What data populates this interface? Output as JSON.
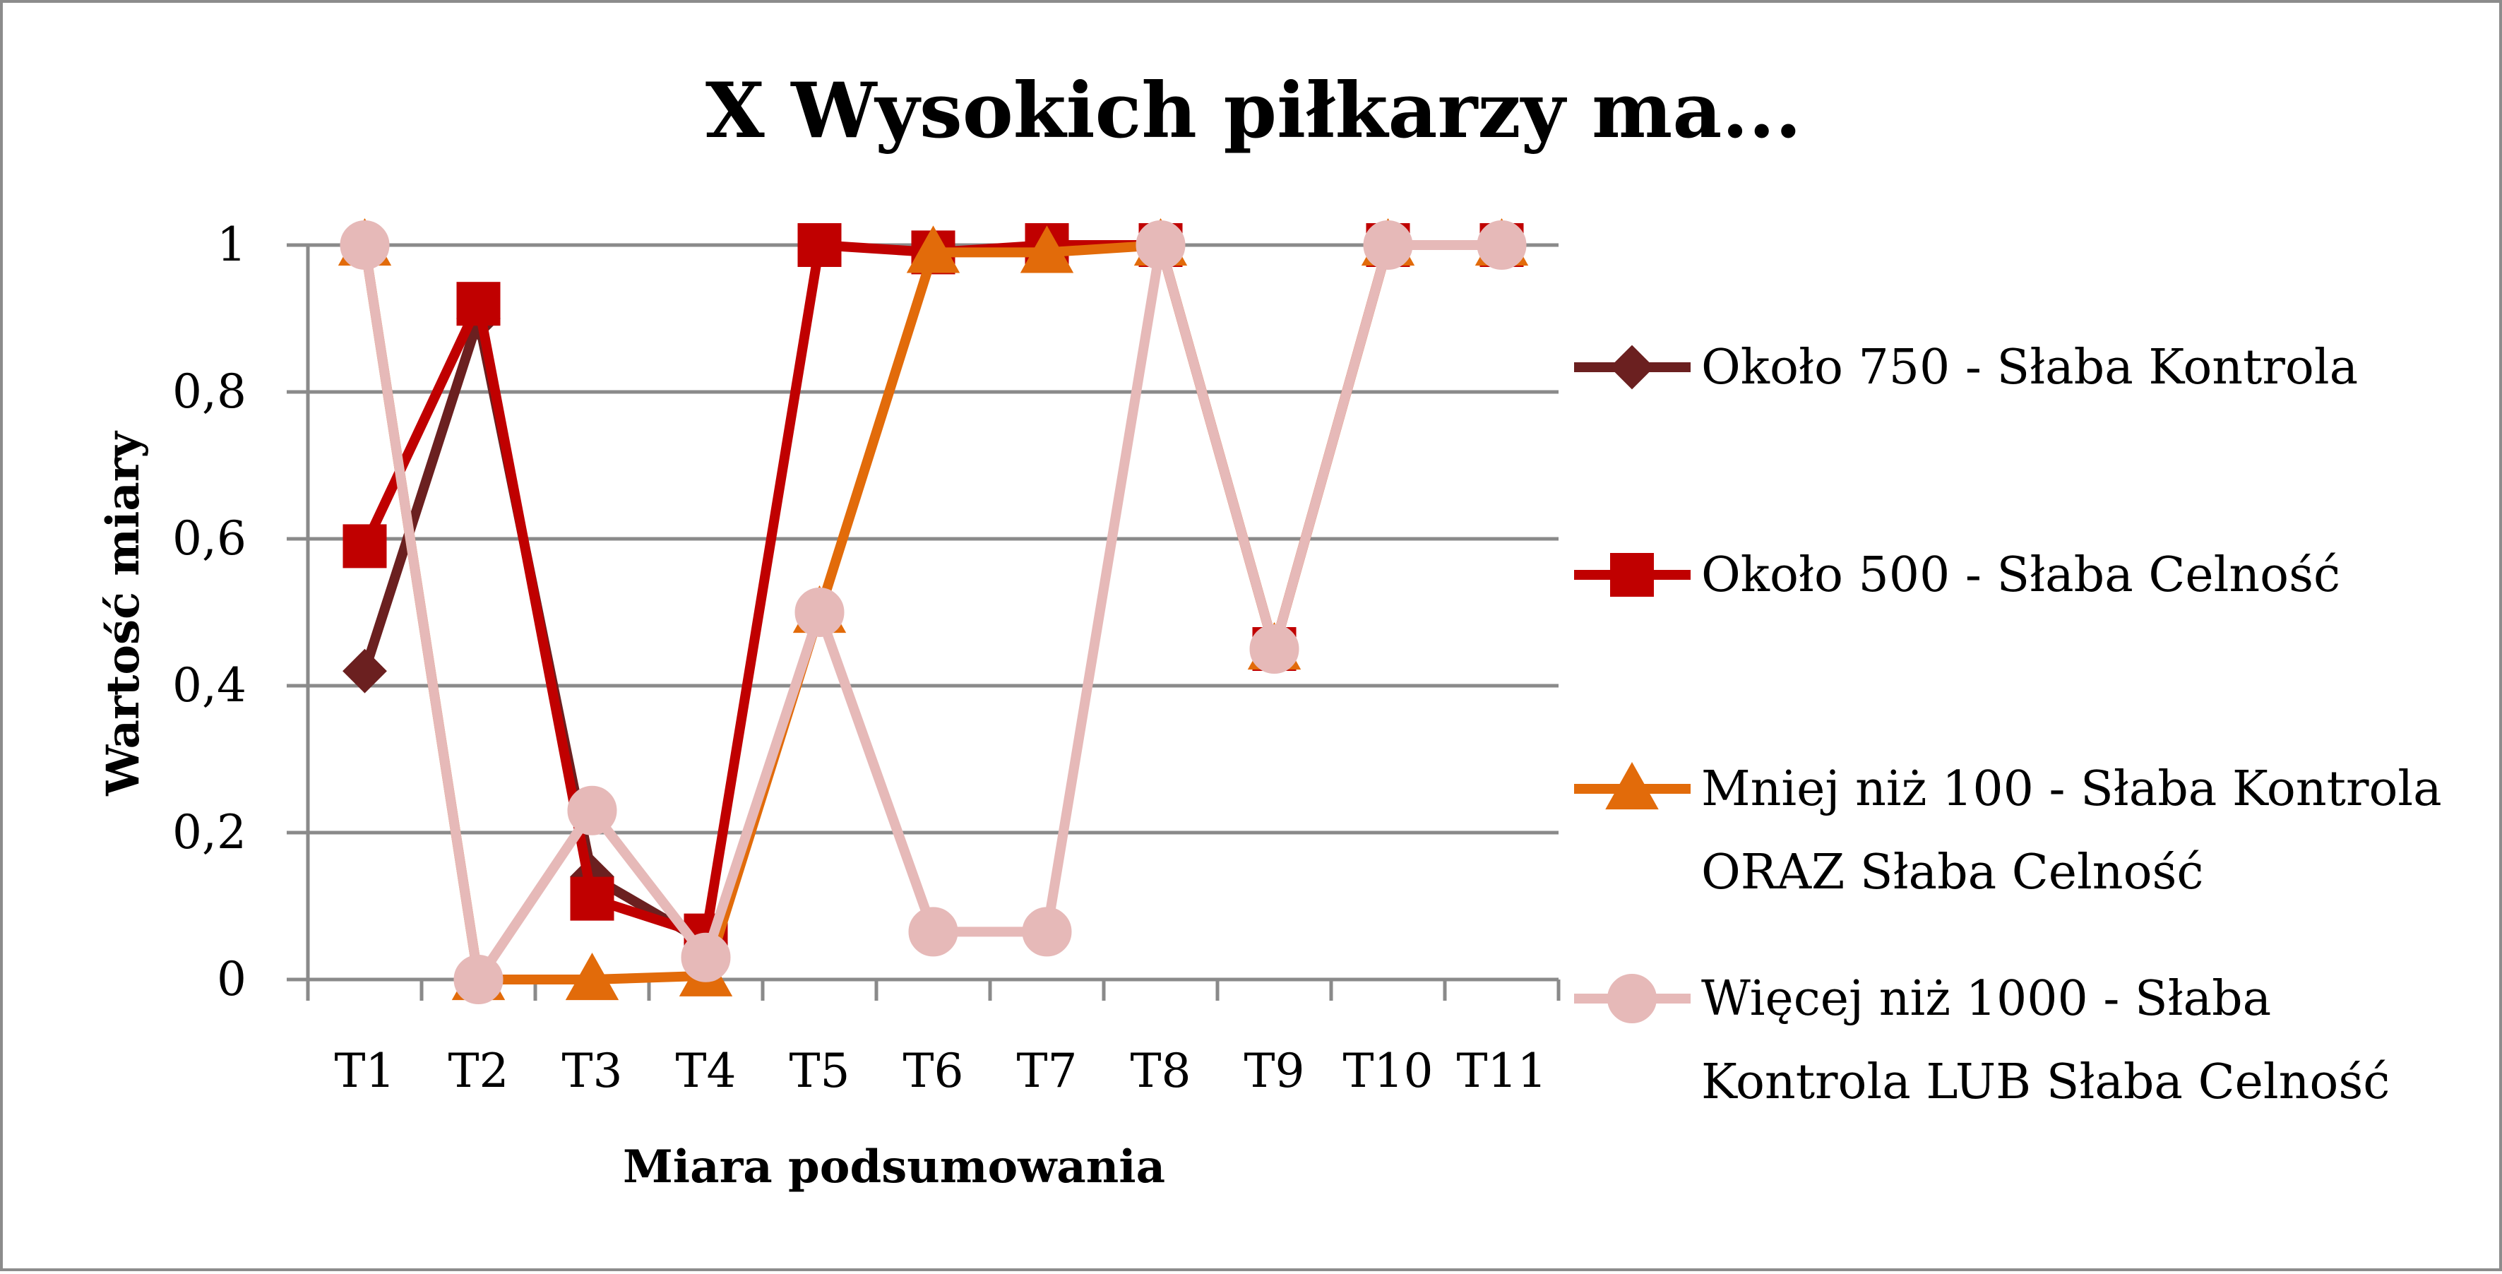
{
  "chart_data": {
    "type": "line",
    "title": "X Wysokich piłkarzy ma...",
    "xlabel": "Miara podsumowania",
    "ylabel": "Wartość miary",
    "categories": [
      "T1",
      "T2",
      "T3",
      "T4",
      "T5",
      "T6",
      "T7",
      "T8",
      "T9",
      "T10",
      "T11"
    ],
    "ylim": [
      0,
      1
    ],
    "yticks": [
      0,
      0.2,
      0.4,
      0.6,
      0.8,
      1
    ],
    "ytick_labels": [
      "0",
      "0,2",
      "0,4",
      "0,6",
      "0,8",
      "1"
    ],
    "grid": true,
    "legend_position": "right",
    "series": [
      {
        "name": "Około 750 - Słaba Kontrola",
        "legend_lines": [
          "Około 750 - Słaba Kontrola"
        ],
        "marker": "diamond",
        "color": "#6b2020",
        "values": [
          0.42,
          0.9,
          0.14,
          0.05,
          null,
          null,
          null,
          null,
          null,
          null,
          null
        ]
      },
      {
        "name": "Około 500 - Słaba Celność",
        "legend_lines": [
          "Około 500 - Słaba Celność"
        ],
        "marker": "square",
        "color": "#c00000",
        "values": [
          0.59,
          0.92,
          0.11,
          0.06,
          1,
          0.99,
          1,
          1,
          0.45,
          1,
          1
        ]
      },
      {
        "name": "Mniej niż 100 - Słaba Kontrola ORAZ Słaba Celność",
        "legend_lines": [
          "Mniej niż 100 - Słaba Kontrola",
          "ORAZ Słaba Celność"
        ],
        "marker": "triangle",
        "color": "#e26b0a",
        "values": [
          1,
          0,
          0,
          0.005,
          0.5,
          0.99,
          0.99,
          1,
          0.45,
          1,
          1
        ]
      },
      {
        "name": "Więcej niż 1000 - Słaba Kontrola LUB Słaba Celność",
        "legend_lines": [
          "Więcej niż 1000 - Słaba",
          "Kontrola LUB Słaba Celność"
        ],
        "marker": "circle",
        "color": "#e6b9b8",
        "values": [
          1,
          0,
          0.23,
          0.03,
          0.5,
          0.065,
          0.065,
          1,
          0.45,
          1,
          1
        ]
      }
    ]
  }
}
